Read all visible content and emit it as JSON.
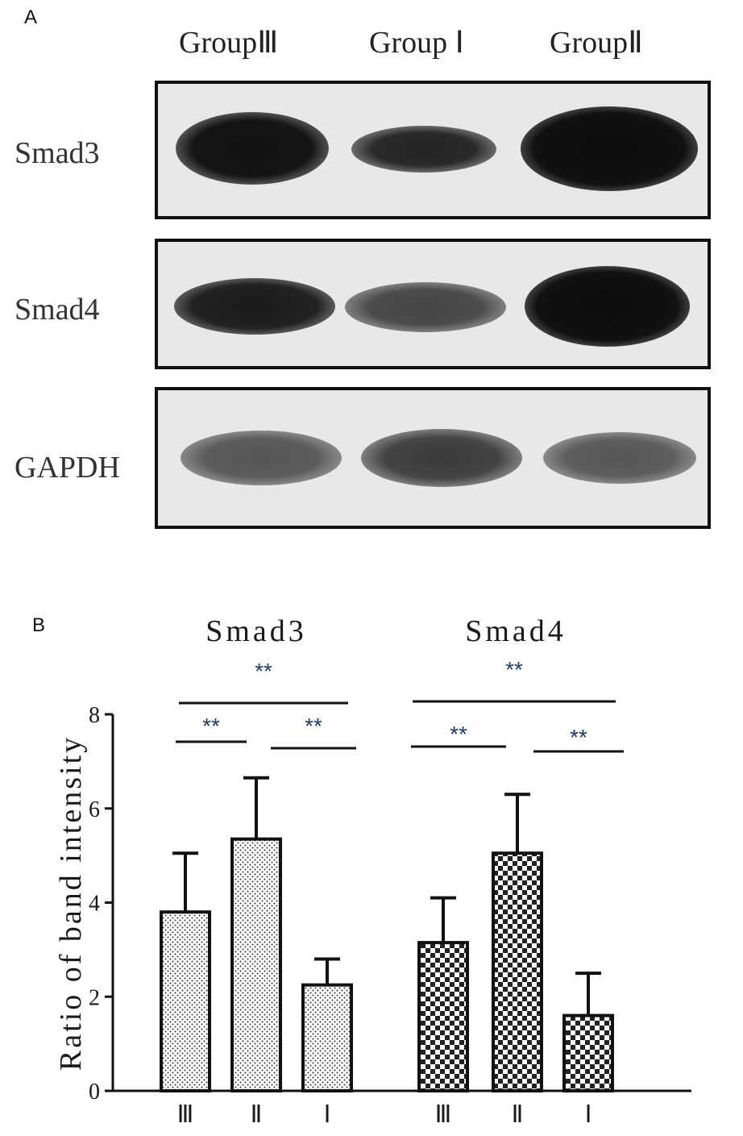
{
  "panel_a": {
    "letter": "A",
    "lane_headers": [
      "GroupⅢ",
      "Group Ⅰ",
      "GroupⅡ"
    ],
    "row_labels": [
      "Smad3",
      "Smad4",
      "GAPDH"
    ]
  },
  "panel_b": {
    "letter": "B"
  },
  "chart_data": {
    "type": "bar",
    "title": "",
    "xlabel": "",
    "ylabel": "Ratio of band intensity",
    "ylim": [
      0,
      8
    ],
    "yticks": [
      0,
      2,
      4,
      6,
      8
    ],
    "groups": [
      {
        "name": "Smad3",
        "pattern": "dots",
        "categories": [
          "Ⅲ",
          "Ⅱ",
          "Ⅰ"
        ],
        "values": [
          3.8,
          5.35,
          2.25
        ],
        "errors": [
          1.25,
          1.3,
          0.55
        ]
      },
      {
        "name": "Smad4",
        "pattern": "checker",
        "categories": [
          "Ⅲ",
          "Ⅱ",
          "Ⅰ"
        ],
        "values": [
          3.15,
          5.05,
          1.6
        ],
        "errors": [
          0.95,
          1.25,
          0.9
        ]
      }
    ],
    "significance": [
      {
        "group": 0,
        "from": 0,
        "to": 2,
        "label": "**"
      },
      {
        "group": 0,
        "from": 0,
        "to": 1,
        "label": "**"
      },
      {
        "group": 0,
        "from": 1,
        "to": 2,
        "label": "**"
      },
      {
        "group": 1,
        "from": 0,
        "to": 2,
        "label": "**"
      },
      {
        "group": 1,
        "from": 0,
        "to": 1,
        "label": "**"
      },
      {
        "group": 1,
        "from": 1,
        "to": 2,
        "label": "**"
      }
    ],
    "colors": {
      "star": "#1f3b73",
      "axis": "#111111",
      "bar_fill": "#ffffff",
      "pattern": "#222222"
    }
  }
}
